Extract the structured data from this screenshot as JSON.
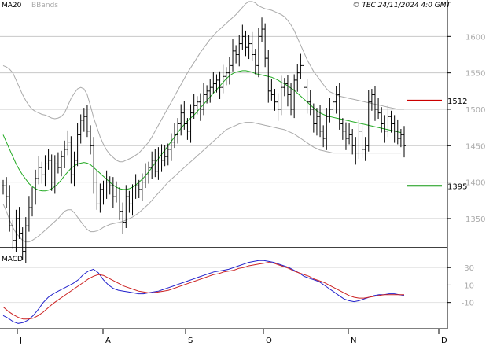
{
  "header": {
    "indicator_ma": "MA20",
    "indicator_bb": "BBands",
    "copyright": "© TEC 24/11/2024 4:0 GMT"
  },
  "macd_panel": {
    "title": "MACD"
  },
  "colors": {
    "ma": "#22aa22",
    "bands": "#aaaaaa",
    "price": "#000000",
    "macd": "#2222cc",
    "signal": "#cc2222",
    "resistance": "#cc0000",
    "support": "#119911",
    "grid": "#c8c8c8"
  },
  "chart_data": [
    {
      "type": "ohlc",
      "y_ticks": [
        1350,
        1400,
        1450,
        1500,
        1550,
        1600
      ],
      "ylim": [
        1310,
        1650
      ],
      "x_ticks": [
        "J",
        "A",
        "S",
        "O",
        "N",
        "D"
      ],
      "legend": [
        "MA20",
        "BBands"
      ],
      "levels": [
        {
          "label": "1512",
          "value": 1512,
          "color": "#cc0000"
        },
        {
          "label": "1395",
          "value": 1395,
          "color": "#119911"
        }
      ],
      "series": [
        {
          "name": "price_close",
          "values": [
            1395,
            1380,
            1340,
            1320,
            1350,
            1330,
            1305,
            1340,
            1365,
            1385,
            1405,
            1420,
            1410,
            1425,
            1430,
            1400,
            1425,
            1420,
            1435,
            1445,
            1455,
            1410,
            1430,
            1465,
            1485,
            1490,
            1470,
            1450,
            1400,
            1370,
            1390,
            1385,
            1400,
            1395,
            1380,
            1385,
            1360,
            1345,
            1380,
            1370,
            1385,
            1395,
            1390,
            1400,
            1410,
            1420,
            1430,
            1415,
            1440,
            1430,
            1435,
            1445,
            1455,
            1465,
            1480,
            1495,
            1480,
            1470,
            1495,
            1505,
            1510,
            1500,
            1520,
            1525,
            1530,
            1535,
            1540,
            1530,
            1545,
            1550,
            1560,
            1580,
            1575,
            1590,
            1600,
            1585,
            1590,
            1575,
            1560,
            1600,
            1610,
            1570,
            1525,
            1520,
            1510,
            1500,
            1530,
            1535,
            1520,
            1500,
            1540,
            1550,
            1560,
            1530,
            1510,
            1500,
            1480,
            1490,
            1470,
            1460,
            1490,
            1500,
            1510,
            1520,
            1480,
            1470,
            1460,
            1465,
            1450,
            1440,
            1470,
            1445,
            1450,
            1510,
            1520,
            1500,
            1495,
            1480,
            1470,
            1490,
            1480,
            1470,
            1460,
            1465,
            1450
          ]
        },
        {
          "name": "MA20",
          "values": [
            1465,
            1455,
            1445,
            1435,
            1425,
            1417,
            1410,
            1404,
            1398,
            1394,
            1391,
            1389,
            1388,
            1388,
            1389,
            1391,
            1394,
            1398,
            1403,
            1409,
            1414,
            1419,
            1422,
            1425,
            1426,
            1427,
            1426,
            1424,
            1420,
            1416,
            1412,
            1408,
            1404,
            1400,
            1396,
            1393,
            1391,
            1390,
            1390,
            1391,
            1393,
            1396,
            1400,
            1404,
            1409,
            1414,
            1420,
            1426,
            1432,
            1438,
            1444,
            1450,
            1456,
            1462,
            1468,
            1474,
            1479,
            1484,
            1488,
            1492,
            1497,
            1502,
            1507,
            1512,
            1517,
            1522,
            1527,
            1532,
            1537,
            1542,
            1546,
            1549,
            1551,
            1552,
            1553,
            1553,
            1552,
            1551,
            1549,
            1548,
            1547,
            1546,
            1545,
            1544,
            1542,
            1540,
            1537,
            1535,
            1532,
            1529,
            1526,
            1522,
            1518,
            1514,
            1510,
            1506,
            1502,
            1498,
            1495,
            1493,
            1491,
            1490,
            1489,
            1488,
            1487,
            1486,
            1485,
            1484,
            1483,
            1482,
            1481,
            1480,
            1479,
            1478,
            1477,
            1476,
            1475,
            1474,
            1473,
            1472,
            1471,
            1470,
            1469,
            1468
          ]
        },
        {
          "name": "BB_upper",
          "values": [
            1560,
            1558,
            1555,
            1550,
            1540,
            1530,
            1520,
            1512,
            1505,
            1500,
            1497,
            1495,
            1493,
            1492,
            1490,
            1488,
            1487,
            1488,
            1490,
            1495,
            1505,
            1515,
            1522,
            1528,
            1530,
            1528,
            1520,
            1505,
            1488,
            1475,
            1462,
            1452,
            1444,
            1438,
            1434,
            1430,
            1428,
            1428,
            1430,
            1432,
            1434,
            1437,
            1440,
            1445,
            1450,
            1455,
            1462,
            1470,
            1478,
            1486,
            1494,
            1502,
            1510,
            1518,
            1526,
            1534,
            1542,
            1550,
            1557,
            1564,
            1571,
            1578,
            1584,
            1590,
            1596,
            1601,
            1606,
            1610,
            1614,
            1618,
            1622,
            1626,
            1630,
            1635,
            1640,
            1645,
            1648,
            1648,
            1646,
            1642,
            1640,
            1638,
            1637,
            1636,
            1634,
            1632,
            1630,
            1627,
            1622,
            1616,
            1608,
            1598,
            1588,
            1578,
            1568,
            1560,
            1552,
            1546,
            1540,
            1534,
            1528,
            1524,
            1522,
            1520,
            1518,
            1517,
            1516,
            1515,
            1514,
            1513,
            1512,
            1511,
            1510,
            1509,
            1508,
            1507,
            1506,
            1505,
            1504,
            1503,
            1502,
            1501,
            1500,
            1500,
            1500
          ]
        },
        {
          "name": "BB_lower",
          "values": [
            1370,
            1360,
            1348,
            1338,
            1330,
            1325,
            1320,
            1318,
            1318,
            1320,
            1323,
            1326,
            1330,
            1334,
            1338,
            1342,
            1346,
            1350,
            1355,
            1360,
            1362,
            1362,
            1358,
            1352,
            1346,
            1340,
            1335,
            1332,
            1332,
            1333,
            1335,
            1338,
            1340,
            1342,
            1343,
            1344,
            1345,
            1346,
            1348,
            1350,
            1352,
            1355,
            1358,
            1362,
            1366,
            1370,
            1375,
            1380,
            1385,
            1390,
            1395,
            1400,
            1404,
            1408,
            1412,
            1416,
            1420,
            1424,
            1428,
            1432,
            1436,
            1440,
            1444,
            1448,
            1452,
            1456,
            1460,
            1464,
            1468,
            1472,
            1474,
            1476,
            1478,
            1480,
            1481,
            1482,
            1482,
            1482,
            1481,
            1480,
            1479,
            1478,
            1477,
            1476,
            1475,
            1474,
            1473,
            1472,
            1470,
            1468,
            1466,
            1463,
            1460,
            1457,
            1454,
            1451,
            1448,
            1446,
            1444,
            1443,
            1442,
            1441,
            1440,
            1440,
            1440,
            1440,
            1440,
            1440,
            1440,
            1440,
            1440,
            1440,
            1440,
            1440,
            1440,
            1440,
            1440,
            1440,
            1440,
            1440,
            1440,
            1440,
            1440,
            1440
          ]
        }
      ]
    },
    {
      "type": "line",
      "title": "MACD",
      "y_ticks": [
        30,
        10,
        -10
      ],
      "ylim": [
        -40,
        50
      ],
      "series": [
        {
          "name": "MACD",
          "values": [
            -25,
            -28,
            -32,
            -34,
            -33,
            -30,
            -25,
            -18,
            -10,
            -4,
            0,
            3,
            6,
            9,
            12,
            16,
            22,
            26,
            28,
            24,
            16,
            10,
            6,
            4,
            3,
            2,
            1,
            0,
            0,
            1,
            2,
            3,
            5,
            7,
            9,
            11,
            13,
            15,
            17,
            19,
            21,
            23,
            25,
            26,
            27,
            28,
            30,
            32,
            34,
            36,
            37,
            38,
            38,
            37,
            36,
            34,
            32,
            30,
            27,
            24,
            20,
            18,
            16,
            14,
            10,
            6,
            2,
            -2,
            -6,
            -8,
            -9,
            -8,
            -6,
            -4,
            -2,
            -1,
            -1,
            0,
            0,
            -1,
            -2
          ]
        },
        {
          "name": "Signal",
          "values": [
            -15,
            -20,
            -24,
            -27,
            -29,
            -29,
            -28,
            -25,
            -21,
            -16,
            -11,
            -7,
            -3,
            1,
            5,
            9,
            13,
            17,
            20,
            22,
            21,
            18,
            15,
            12,
            9,
            7,
            5,
            3,
            2,
            1,
            1,
            2,
            3,
            4,
            6,
            8,
            10,
            12,
            14,
            16,
            18,
            20,
            22,
            23,
            25,
            26,
            27,
            29,
            30,
            32,
            33,
            34,
            35,
            36,
            35,
            33,
            31,
            29,
            26,
            24,
            22,
            20,
            17,
            15,
            13,
            10,
            7,
            4,
            1,
            -2,
            -4,
            -5,
            -5,
            -4,
            -3,
            -2,
            -1,
            -1,
            -1,
            -1,
            -1
          ]
        }
      ]
    }
  ]
}
